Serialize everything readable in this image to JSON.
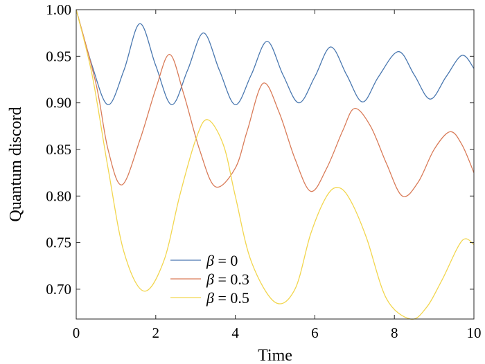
{
  "chart_data": {
    "type": "line",
    "title": "",
    "xlabel": "Time",
    "ylabel": "Quantum discord",
    "xlim": [
      0,
      10
    ],
    "ylim": [
      0.668,
      1.0
    ],
    "xticks": [
      0,
      2,
      4,
      6,
      8,
      10
    ],
    "yticks": [
      0.7,
      0.75,
      0.8,
      0.85,
      0.9,
      0.95,
      1.0
    ],
    "ytick_labels": [
      "0.70",
      "0.75",
      "0.80",
      "0.85",
      "0.90",
      "0.95",
      "1.00"
    ],
    "grid": false,
    "legend_position": "bottom-left",
    "series": [
      {
        "name": "β = 0",
        "name_symbol": "β",
        "name_rest": " = 0",
        "color": "#4a78b0",
        "points": [
          [
            0,
            1.0
          ],
          [
            0.4,
            0.94
          ],
          [
            0.8,
            0.898
          ],
          [
            1.2,
            0.935
          ],
          [
            1.6,
            0.985
          ],
          [
            2.0,
            0.94
          ],
          [
            2.4,
            0.898
          ],
          [
            2.8,
            0.935
          ],
          [
            3.2,
            0.975
          ],
          [
            3.6,
            0.935
          ],
          [
            4.0,
            0.898
          ],
          [
            4.4,
            0.93
          ],
          [
            4.8,
            0.966
          ],
          [
            5.2,
            0.93
          ],
          [
            5.6,
            0.9
          ],
          [
            6.0,
            0.928
          ],
          [
            6.4,
            0.96
          ],
          [
            6.8,
            0.93
          ],
          [
            7.2,
            0.901
          ],
          [
            7.6,
            0.928
          ],
          [
            8.1,
            0.955
          ],
          [
            8.5,
            0.93
          ],
          [
            8.9,
            0.904
          ],
          [
            9.3,
            0.928
          ],
          [
            9.7,
            0.951
          ],
          [
            10.0,
            0.937
          ]
        ]
      },
      {
        "name": "β = 0.3",
        "name_symbol": "β",
        "name_rest": " = 0.3",
        "color": "#d97b58",
        "points": [
          [
            0,
            1.0
          ],
          [
            0.5,
            0.92
          ],
          [
            0.8,
            0.85
          ],
          [
            1.15,
            0.812
          ],
          [
            1.6,
            0.86
          ],
          [
            2.0,
            0.915
          ],
          [
            2.35,
            0.952
          ],
          [
            2.7,
            0.91
          ],
          [
            3.1,
            0.85
          ],
          [
            3.5,
            0.81
          ],
          [
            4.0,
            0.83
          ],
          [
            4.3,
            0.87
          ],
          [
            4.7,
            0.921
          ],
          [
            5.1,
            0.89
          ],
          [
            5.5,
            0.84
          ],
          [
            5.9,
            0.805
          ],
          [
            6.3,
            0.83
          ],
          [
            6.7,
            0.87
          ],
          [
            7.0,
            0.894
          ],
          [
            7.4,
            0.875
          ],
          [
            7.8,
            0.835
          ],
          [
            8.2,
            0.8
          ],
          [
            8.6,
            0.815
          ],
          [
            9.0,
            0.85
          ],
          [
            9.4,
            0.869
          ],
          [
            9.7,
            0.855
          ],
          [
            10.0,
            0.825
          ]
        ]
      },
      {
        "name": "β = 0.5",
        "name_symbol": "β",
        "name_rest": " = 0.5",
        "color": "#f2d64e",
        "points": [
          [
            0,
            1.0
          ],
          [
            0.4,
            0.93
          ],
          [
            0.8,
            0.83
          ],
          [
            1.2,
            0.74
          ],
          [
            1.7,
            0.698
          ],
          [
            2.2,
            0.73
          ],
          [
            2.6,
            0.8
          ],
          [
            3.0,
            0.86
          ],
          [
            3.3,
            0.882
          ],
          [
            3.7,
            0.855
          ],
          [
            4.0,
            0.8
          ],
          [
            4.4,
            0.73
          ],
          [
            5.0,
            0.686
          ],
          [
            5.5,
            0.7
          ],
          [
            5.9,
            0.76
          ],
          [
            6.3,
            0.8
          ],
          [
            6.6,
            0.809
          ],
          [
            6.9,
            0.795
          ],
          [
            7.3,
            0.755
          ],
          [
            7.8,
            0.69
          ],
          [
            8.4,
            0.668
          ],
          [
            8.8,
            0.68
          ],
          [
            9.2,
            0.71
          ],
          [
            9.7,
            0.752
          ],
          [
            10.0,
            0.748
          ]
        ]
      }
    ]
  }
}
